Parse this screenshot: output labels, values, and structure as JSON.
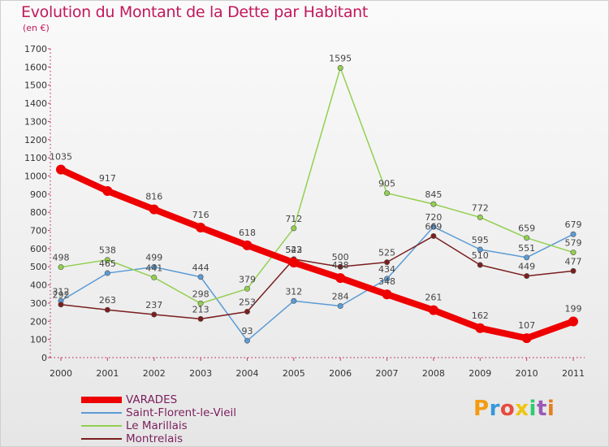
{
  "title": "Evolution du Montant de la Dette par Habitant",
  "unit_label": "(en €)",
  "logo_text": "Proxiti",
  "colors": {
    "title": "#c2185b",
    "VARADES": "#ee0000",
    "Saint-Florent-le-Vieil": "#5b9bd5",
    "Le Marillais": "#92d050",
    "Montrelais": "#7b1e1e"
  },
  "chart_data": {
    "type": "line",
    "title": "Evolution du Montant de la Dette par Habitant",
    "xlabel": "",
    "ylabel": "(en €)",
    "ylim": [
      0,
      1700
    ],
    "yticks": [
      0,
      100,
      200,
      300,
      400,
      500,
      600,
      700,
      800,
      900,
      1000,
      1100,
      1200,
      1300,
      1400,
      1500,
      1600,
      1700
    ],
    "grid": false,
    "legend": "bottom-left",
    "categories": [
      "2000",
      "2001",
      "2002",
      "2003",
      "2004",
      "2005",
      "2006",
      "2007",
      "2008",
      "2009",
      "2010",
      "2011"
    ],
    "series": [
      {
        "name": "VARADES",
        "values": [
          1035,
          917,
          816,
          716,
          618,
          523,
          438,
          348,
          261,
          162,
          107,
          199
        ]
      },
      {
        "name": "Saint-Florent-le-Vieil",
        "values": [
          312,
          465,
          499,
          444,
          93,
          312,
          284,
          434,
          720,
          595,
          551,
          679
        ]
      },
      {
        "name": "Le Marillais",
        "values": [
          498,
          538,
          441,
          298,
          379,
          712,
          1595,
          905,
          845,
          772,
          659,
          579
        ]
      },
      {
        "name": "Montrelais",
        "values": [
          292,
          263,
          237,
          213,
          253,
          542,
          500,
          525,
          669,
          510,
          449,
          477
        ]
      }
    ]
  }
}
